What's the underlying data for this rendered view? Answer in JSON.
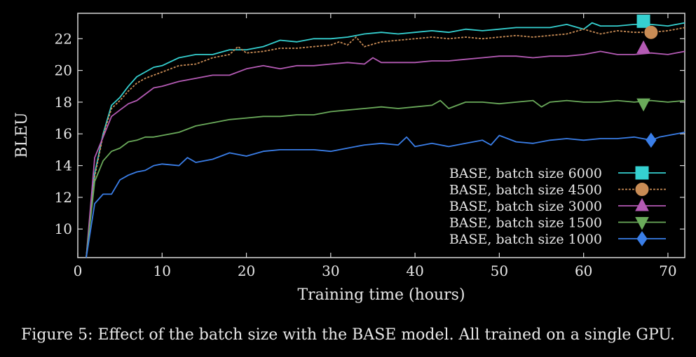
{
  "chart_data": {
    "type": "line",
    "xlabel": "Training time (hours)",
    "ylabel": "BLEU",
    "xlim": [
      0,
      72
    ],
    "ylim": [
      8.2,
      23.6
    ],
    "xticks": [
      0,
      10,
      20,
      30,
      40,
      50,
      60,
      70
    ],
    "yticks": [
      10,
      12,
      14,
      16,
      18,
      20,
      22
    ],
    "grid": false,
    "legend_position": "bottom-right",
    "series": [
      {
        "name": "BASE, batch size 6000",
        "color": "#35d0d0",
        "marker": "square",
        "dashed": false,
        "marker_x": 67.1,
        "marker_y": 23.1,
        "x": [
          1,
          2,
          3,
          4,
          5,
          6,
          7,
          8,
          9,
          10,
          12,
          14,
          16,
          18,
          20,
          22,
          24,
          26,
          28,
          30,
          32,
          34,
          36,
          38,
          40,
          42,
          44,
          46,
          48,
          50,
          52,
          54,
          56,
          58,
          60,
          61,
          62,
          64,
          66,
          68,
          70,
          72
        ],
        "values": [
          8.0,
          13.5,
          16.0,
          17.8,
          18.3,
          19.0,
          19.6,
          19.9,
          20.2,
          20.3,
          20.8,
          21.0,
          21.0,
          21.3,
          21.3,
          21.5,
          21.9,
          21.8,
          22.0,
          22.0,
          22.1,
          22.3,
          22.4,
          22.3,
          22.4,
          22.5,
          22.4,
          22.6,
          22.5,
          22.6,
          22.7,
          22.7,
          22.7,
          22.9,
          22.6,
          23.0,
          22.8,
          22.8,
          22.9,
          22.9,
          22.8,
          23.0
        ]
      },
      {
        "name": "BASE, batch size 4500",
        "color": "#c98c55",
        "marker": "circle",
        "dashed": true,
        "marker_x": 68.0,
        "marker_y": 22.4,
        "x": [
          1,
          2,
          3,
          4,
          5,
          6,
          7,
          8,
          9,
          10,
          12,
          14,
          16,
          18,
          19,
          20,
          22,
          24,
          26,
          28,
          30,
          31,
          32,
          33,
          34,
          36,
          38,
          40,
          42,
          44,
          46,
          48,
          50,
          52,
          54,
          56,
          58,
          60,
          62,
          64,
          66,
          68,
          70,
          72
        ],
        "values": [
          8.0,
          13.3,
          15.9,
          17.6,
          18.1,
          18.7,
          19.2,
          19.5,
          19.7,
          19.9,
          20.3,
          20.4,
          20.8,
          21.0,
          21.5,
          21.1,
          21.2,
          21.4,
          21.4,
          21.5,
          21.6,
          21.8,
          21.6,
          22.1,
          21.5,
          21.8,
          21.9,
          22.0,
          22.1,
          22.0,
          22.1,
          22.0,
          22.1,
          22.2,
          22.1,
          22.2,
          22.3,
          22.6,
          22.3,
          22.5,
          22.4,
          22.4,
          22.5,
          22.7
        ]
      },
      {
        "name": "BASE, batch size 3000",
        "color": "#b45ab4",
        "marker": "triangle-up",
        "dashed": false,
        "marker_x": 67.1,
        "marker_y": 21.4,
        "x": [
          1,
          2,
          3,
          4,
          5,
          6,
          7,
          8,
          9,
          10,
          12,
          14,
          16,
          18,
          20,
          22,
          24,
          26,
          28,
          30,
          32,
          34,
          35,
          36,
          38,
          40,
          42,
          44,
          46,
          48,
          50,
          52,
          54,
          56,
          58,
          60,
          62,
          64,
          66,
          68,
          70,
          72
        ],
        "values": [
          8.0,
          14.5,
          15.8,
          17.1,
          17.5,
          17.9,
          18.1,
          18.5,
          18.9,
          19.0,
          19.3,
          19.5,
          19.7,
          19.7,
          20.1,
          20.3,
          20.1,
          20.3,
          20.3,
          20.4,
          20.5,
          20.4,
          20.8,
          20.5,
          20.5,
          20.5,
          20.6,
          20.6,
          20.7,
          20.8,
          20.9,
          20.9,
          20.8,
          20.9,
          20.9,
          21.0,
          21.2,
          21.0,
          21.0,
          21.1,
          21.0,
          21.2
        ]
      },
      {
        "name": "BASE, batch size 1500",
        "color": "#6aaa5a",
        "marker": "triangle-down",
        "dashed": false,
        "marker_x": 67.1,
        "marker_y": 17.9,
        "x": [
          1,
          2,
          3,
          4,
          5,
          6,
          7,
          8,
          9,
          10,
          12,
          14,
          16,
          18,
          20,
          22,
          24,
          26,
          28,
          30,
          32,
          34,
          36,
          38,
          40,
          42,
          43,
          44,
          46,
          48,
          50,
          52,
          54,
          55,
          56,
          58,
          60,
          62,
          64,
          66,
          68,
          70,
          72
        ],
        "values": [
          8.0,
          13.0,
          14.3,
          14.9,
          15.1,
          15.5,
          15.6,
          15.8,
          15.8,
          15.9,
          16.1,
          16.5,
          16.7,
          16.9,
          17.0,
          17.1,
          17.1,
          17.2,
          17.2,
          17.4,
          17.5,
          17.6,
          17.7,
          17.6,
          17.7,
          17.8,
          18.1,
          17.6,
          18.0,
          18.0,
          17.9,
          18.0,
          18.1,
          17.7,
          18.0,
          18.1,
          18.0,
          18.0,
          18.1,
          18.0,
          18.1,
          18.0,
          18.1
        ]
      },
      {
        "name": "BASE, batch size 1000",
        "color": "#3a7ee8",
        "marker": "diamond",
        "dashed": false,
        "marker_x": 68.0,
        "marker_y": 15.6,
        "x": [
          1,
          2,
          3,
          4,
          5,
          6,
          7,
          8,
          9,
          10,
          12,
          13,
          14,
          16,
          18,
          20,
          22,
          24,
          26,
          28,
          30,
          32,
          34,
          36,
          38,
          39,
          40,
          42,
          44,
          46,
          48,
          49,
          50,
          52,
          54,
          56,
          58,
          60,
          62,
          64,
          66,
          68,
          69,
          70,
          72
        ],
        "values": [
          8.0,
          11.6,
          12.2,
          12.2,
          13.1,
          13.4,
          13.6,
          13.7,
          14.0,
          14.1,
          14.0,
          14.5,
          14.2,
          14.4,
          14.8,
          14.6,
          14.9,
          15.0,
          15.0,
          15.0,
          14.9,
          15.1,
          15.3,
          15.4,
          15.3,
          15.8,
          15.2,
          15.4,
          15.2,
          15.4,
          15.6,
          15.3,
          15.9,
          15.5,
          15.4,
          15.6,
          15.7,
          15.6,
          15.7,
          15.7,
          15.8,
          15.6,
          15.8,
          15.9,
          16.1
        ]
      }
    ]
  },
  "caption": "Figure 5:  Effect of the batch size with the BASE model.  All trained on a single GPU."
}
